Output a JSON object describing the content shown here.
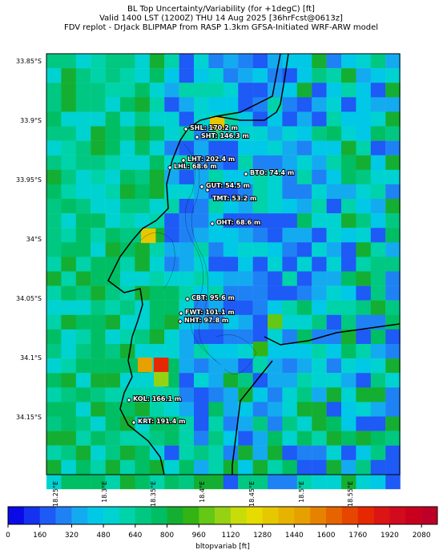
{
  "title_lines": [
    "BL Top Uncertainty/Variability (for +1degC) [ft]",
    "Valid 1400 LST (1200Z) THU 14 Aug 2025 [36hrFcst@0613z]",
    "FDV replot - DrJack BLIPMAP from RASP 1.3km GFSA-Initiated WRF-ARW model"
  ],
  "lat_labels": [
    "33.85°S",
    "33.9°S",
    "33.95°S",
    "34°S",
    "34.05°S",
    "34.1°S",
    "34.15°S"
  ],
  "lon_labels": [
    "18.25°E",
    "18.3°E",
    "18.35°E",
    "18.4°E",
    "18.45°E",
    "18.5°E",
    "18.55°E"
  ],
  "stations": [
    "SHL: 170.2 m",
    "SHT: 146.3 m",
    "LHT: 202.4 m",
    "LHL: 68.6 m",
    "BTO: 74.4 m",
    "GUT: 54.5 m",
    "TMT: 53.2 m",
    "OHT: 68.6 m",
    "CBT: 95.6 m",
    "FWT: 101.1 m",
    "NHT: 97.8 m",
    "KOL: 166.1 m",
    "KRT: 191.4 m"
  ],
  "colorbar": {
    "label": "bltopvariab [ft]",
    "lim": [
      0,
      2160
    ],
    "ticks": [
      0,
      160,
      320,
      480,
      640,
      800,
      960,
      1120,
      1280,
      1440,
      1600,
      1760,
      1920,
      2080
    ],
    "colors": [
      "#0a0ae6",
      "#1432f0",
      "#1e5af5",
      "#1e82f5",
      "#14aaf0",
      "#00c8e6",
      "#00d2d2",
      "#00d2aa",
      "#00c882",
      "#00be64",
      "#14af32",
      "#32b414",
      "#64c814",
      "#96d214",
      "#c8dc0a",
      "#e6dc00",
      "#e6c800",
      "#e6b400",
      "#e6a000",
      "#e68200",
      "#e66400",
      "#e64600",
      "#e62800",
      "#dc1414",
      "#d20a1e",
      "#c8001e",
      "#be0028"
    ]
  }
}
